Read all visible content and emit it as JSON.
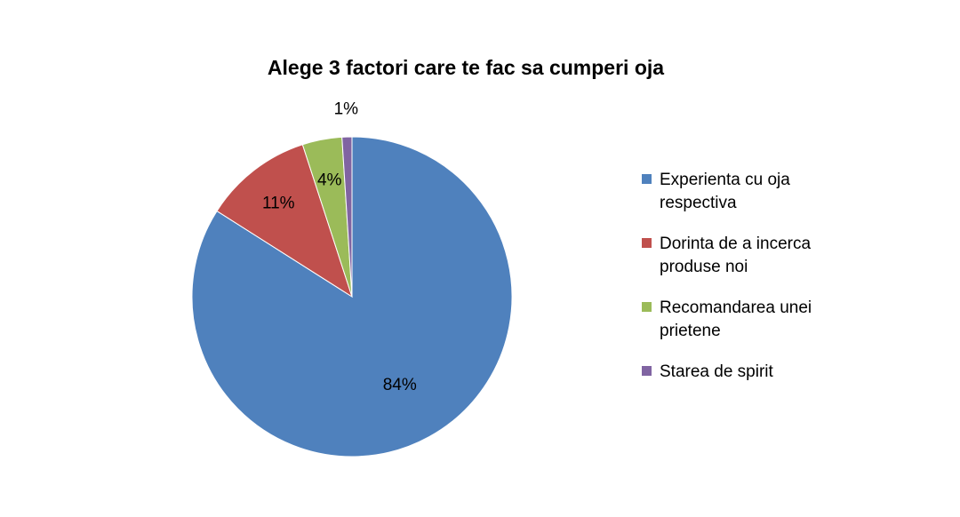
{
  "chart_data": {
    "type": "pie",
    "title": "Alege 3 factori care te fac sa cumperi oja",
    "categories": [
      "Experienta cu oja respectiva",
      "Dorinta de a incerca produse noi",
      "Recomandarea unei prietene",
      "Starea de spirit"
    ],
    "legend_lines": [
      [
        "Experienta cu oja",
        "respectiva"
      ],
      [
        "Dorinta de a incerca",
        "produse noi"
      ],
      [
        "Recomandarea unei",
        "prietene"
      ],
      [
        "Starea de spirit"
      ]
    ],
    "values": [
      84,
      11,
      4,
      1
    ],
    "data_labels": [
      "84%",
      "11%",
      "4%",
      "1%"
    ],
    "colors": [
      "#4F81BD",
      "#C0504D",
      "#9BBB59",
      "#8064A2"
    ],
    "legend_position": "right"
  }
}
